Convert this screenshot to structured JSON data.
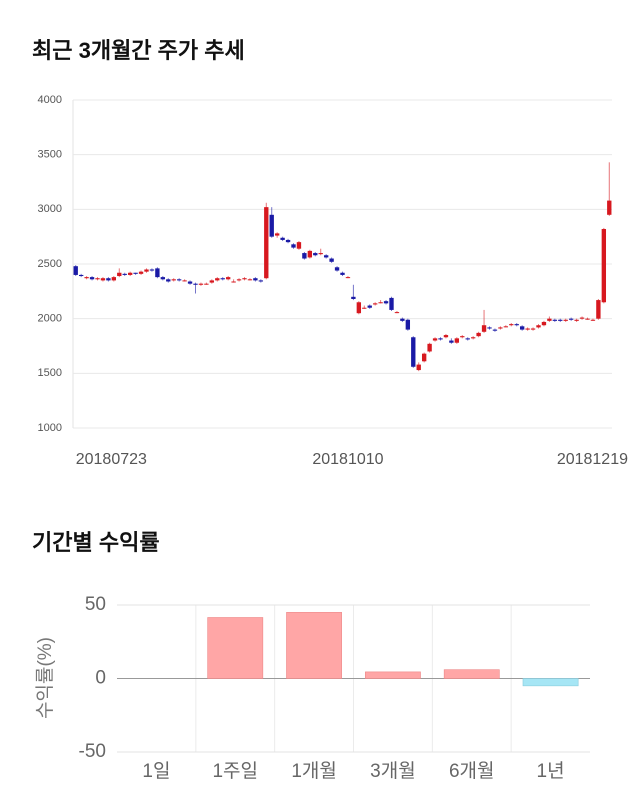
{
  "chart_data": [
    {
      "type": "candlestick",
      "title": "최근 3개월간 주가 추세",
      "categories": [
        "20180723",
        null,
        null,
        null,
        null,
        null,
        null,
        null,
        null,
        null,
        null,
        null,
        null,
        null,
        null,
        null,
        null,
        null,
        null,
        null,
        null,
        null,
        null,
        null,
        null,
        null,
        null,
        null,
        null,
        null,
        null,
        null,
        null,
        null,
        null,
        null,
        null,
        null,
        null,
        null,
        null,
        null,
        null,
        null,
        null,
        null,
        null,
        null,
        null,
        null,
        "20181010",
        null,
        null,
        null,
        null,
        null,
        null,
        null,
        null,
        null,
        null,
        null,
        null,
        null,
        null,
        null,
        null,
        null,
        null,
        null,
        null,
        null,
        null,
        null,
        null,
        null,
        null,
        null,
        null,
        null,
        null,
        null,
        null,
        null,
        null,
        null,
        null,
        null,
        null,
        null,
        null,
        null,
        null,
        null,
        null,
        null,
        null,
        null,
        "20181219"
      ],
      "open": [
        2480,
        2400,
        2370,
        2380,
        2360,
        2350,
        2370,
        2350,
        2390,
        2410,
        2400,
        2420,
        2410,
        2430,
        2450,
        2460,
        2380,
        2360,
        2350,
        2360,
        2350,
        2340,
        2320,
        2310,
        2320,
        2330,
        2350,
        2370,
        2360,
        2340,
        2350,
        2360,
        2360,
        2370,
        2350,
        2370,
        2950,
        2760,
        2740,
        2720,
        2680,
        2640,
        2600,
        2560,
        2600,
        2590,
        2580,
        2550,
        2470,
        2420,
        2380,
        2200,
        2050,
        2100,
        2120,
        2130,
        2150,
        2160,
        2190,
        2060,
        2000,
        1990,
        1830,
        1530,
        1610,
        1700,
        1800,
        1820,
        1830,
        1800,
        1780,
        1830,
        1820,
        1820,
        1840,
        1880,
        1920,
        1900,
        1910,
        1930,
        1940,
        1950,
        1930,
        1900,
        1900,
        1920,
        1940,
        1980,
        1990,
        1990,
        1980,
        2000,
        1980,
        2000,
        2000,
        1990,
        2000,
        2150,
        2950
      ],
      "close": [
        2400,
        2390,
        2380,
        2360,
        2370,
        2370,
        2350,
        2380,
        2420,
        2400,
        2420,
        2410,
        2430,
        2450,
        2440,
        2380,
        2360,
        2340,
        2360,
        2350,
        2350,
        2320,
        2310,
        2320,
        2320,
        2350,
        2370,
        2360,
        2380,
        2340,
        2360,
        2370,
        2360,
        2350,
        2340,
        3020,
        2750,
        2780,
        2720,
        2700,
        2650,
        2700,
        2550,
        2620,
        2580,
        2600,
        2560,
        2520,
        2440,
        2400,
        2380,
        2180,
        2150,
        2100,
        2100,
        2140,
        2150,
        2140,
        2080,
        2060,
        1980,
        1900,
        1560,
        1580,
        1680,
        1770,
        1820,
        1810,
        1850,
        1780,
        1820,
        1840,
        1810,
        1830,
        1870,
        1940,
        1910,
        1890,
        1920,
        1930,
        1950,
        1940,
        1900,
        1910,
        1910,
        1940,
        1970,
        2000,
        1980,
        1980,
        1990,
        1990,
        1990,
        2010,
        2000,
        1990,
        2170,
        2820,
        3080
      ],
      "high": [
        2490,
        2410,
        2390,
        2390,
        2380,
        2380,
        2380,
        2390,
        2460,
        2420,
        2430,
        2420,
        2440,
        2460,
        2460,
        2470,
        2390,
        2370,
        2370,
        2370,
        2360,
        2350,
        2330,
        2330,
        2330,
        2360,
        2380,
        2380,
        2390,
        2360,
        2370,
        2380,
        2370,
        2380,
        2360,
        3060,
        3020,
        2790,
        2750,
        2730,
        2690,
        2710,
        2610,
        2630,
        2610,
        2640,
        2590,
        2560,
        2480,
        2430,
        2390,
        2310,
        2160,
        2120,
        2130,
        2150,
        2170,
        2170,
        2200,
        2070,
        2010,
        2000,
        1840,
        1600,
        1690,
        1780,
        1830,
        1830,
        1860,
        1820,
        1830,
        1850,
        1830,
        1840,
        1880,
        2080,
        1930,
        1910,
        1930,
        1940,
        1960,
        1960,
        1940,
        1920,
        1920,
        1950,
        1980,
        2020,
        2000,
        2000,
        2000,
        2010,
        2000,
        2020,
        2010,
        2000,
        2180,
        2830,
        3430
      ],
      "low": [
        2390,
        2380,
        2360,
        2350,
        2350,
        2340,
        2340,
        2340,
        2380,
        2390,
        2390,
        2400,
        2400,
        2420,
        2430,
        2370,
        2350,
        2330,
        2340,
        2340,
        2340,
        2310,
        2230,
        2300,
        2310,
        2320,
        2340,
        2350,
        2350,
        2330,
        2340,
        2350,
        2350,
        2340,
        2330,
        2360,
        2740,
        2740,
        2710,
        2690,
        2640,
        2630,
        2540,
        2550,
        2570,
        2580,
        2550,
        2510,
        2430,
        2390,
        2370,
        2170,
        2040,
        2090,
        2090,
        2120,
        2140,
        2130,
        2070,
        2050,
        1970,
        1890,
        1550,
        1520,
        1600,
        1690,
        1790,
        1800,
        1820,
        1770,
        1770,
        1820,
        1800,
        1810,
        1830,
        1870,
        1900,
        1880,
        1900,
        1920,
        1930,
        1930,
        1890,
        1890,
        1890,
        1910,
        1930,
        1970,
        1970,
        1970,
        1970,
        1980,
        1970,
        1990,
        1990,
        1980,
        1990,
        2140,
        2940
      ],
      "up_color": "#d7181f",
      "down_color": "#1a1aa6",
      "ylim": [
        1000,
        4000
      ],
      "yticks": [
        1000,
        1500,
        2000,
        2500,
        3000,
        3500,
        4000
      ],
      "grid": true
    },
    {
      "type": "bar",
      "title": "기간별 수익률",
      "ylabel": "수익률(%)",
      "categories": [
        "1일",
        "1주일",
        "1개월",
        "3개월",
        "6개월",
        "1년"
      ],
      "values": [
        0,
        41.5,
        45,
        4.5,
        6,
        -5
      ],
      "pos_color": "#ffa6a6",
      "neg_color": "#a6e6f5",
      "ylim": [
        -50,
        50
      ],
      "yticks": [
        -50,
        0,
        50
      ],
      "grid": true
    }
  ]
}
